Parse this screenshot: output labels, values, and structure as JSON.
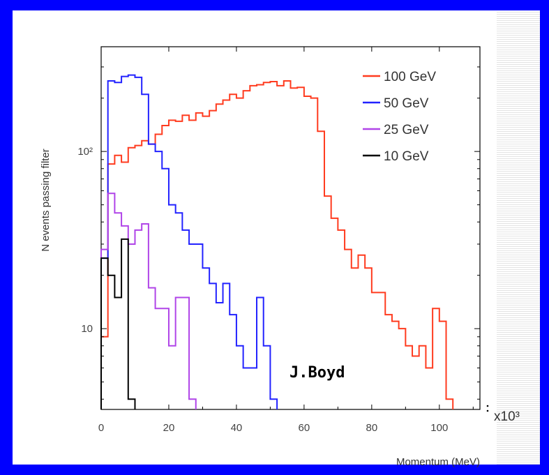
{
  "chart_data": {
    "type": "step histogram",
    "xlabel": "Momentum (MeV)",
    "ylabel": "N events passing filter",
    "x_multiplier_label": "x10³",
    "xlim": [
      0,
      112
    ],
    "ylim": [
      3.5,
      390
    ],
    "yscale": "log",
    "x_ticks": [
      0,
      20,
      40,
      60,
      80,
      100
    ],
    "y_ticks": [
      {
        "value": 10,
        "label": "10"
      },
      {
        "value": 100,
        "label": "10²"
      }
    ],
    "annotation": "J.Boyd",
    "legend_position": "top-right",
    "bin_width": 2,
    "series": [
      {
        "name": "100 GeV",
        "color": "#ff3b1f",
        "start": 0,
        "values": [
          9,
          85,
          95,
          87,
          105,
          108,
          115,
          110,
          125,
          140,
          150,
          148,
          160,
          150,
          165,
          158,
          170,
          185,
          195,
          210,
          200,
          220,
          235,
          238,
          245,
          248,
          235,
          250,
          228,
          230,
          205,
          200,
          130,
          56,
          42,
          36,
          28,
          22,
          26,
          22,
          16,
          16,
          12,
          11,
          10,
          8,
          7,
          8,
          6,
          13,
          11,
          4
        ]
      },
      {
        "name": "50 GeV",
        "color": "#2222ff",
        "start": 0,
        "values": [
          25,
          250,
          245,
          265,
          270,
          262,
          210,
          110,
          100,
          80,
          50,
          45,
          36,
          30,
          30,
          22,
          18,
          14,
          18,
          12,
          8,
          6,
          6,
          15,
          8,
          4
        ]
      },
      {
        "name": "25 GeV",
        "color": "#b044e8",
        "start": 0,
        "values": [
          28,
          58,
          45,
          38,
          30,
          36,
          39,
          17,
          13,
          13,
          8,
          15,
          15,
          4
        ]
      },
      {
        "name": "10 GeV",
        "color": "#000000",
        "start": 0,
        "values": [
          25,
          20,
          15,
          32,
          4
        ]
      }
    ]
  }
}
